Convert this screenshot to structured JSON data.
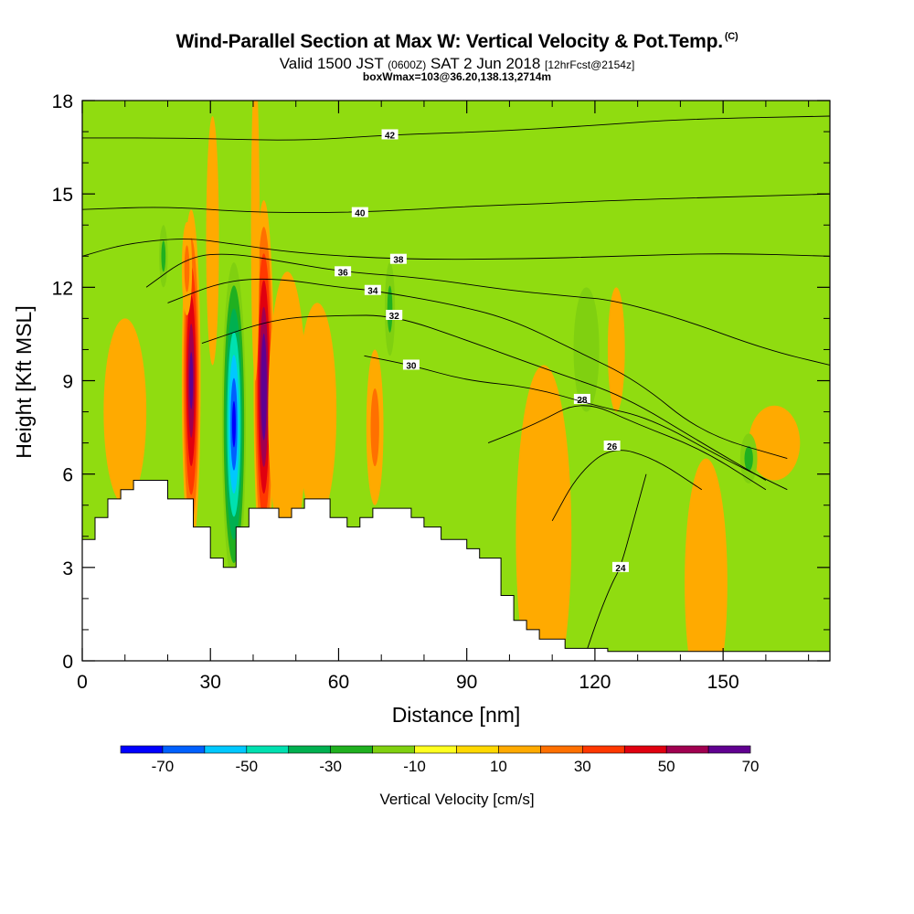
{
  "header": {
    "title": "Wind-Parallel Section at Max W: Vertical Velocity & Pot.Temp.",
    "title_mark": "(C)",
    "sub_part1": "Valid 1500 JST",
    "sub_part2": "(0600Z)",
    "sub_part3": "SAT 2 Jun 2018",
    "sub_part4": "[12hrFcst@2154z]",
    "sub2": "boxWmax=103@36.20,138.13,2714m"
  },
  "chart_data": {
    "type": "heatmap",
    "xlabel": "Distance [nm]",
    "ylabel": "Height [Kft MSL]",
    "xlim": [
      0,
      175
    ],
    "ylim": [
      0,
      18
    ],
    "x_ticks": [
      "0",
      "30",
      "60",
      "90",
      "120",
      "150"
    ],
    "y_ticks": [
      "0",
      "3",
      "6",
      "9",
      "12",
      "15",
      "18"
    ],
    "x_tick_values": [
      0,
      30,
      60,
      90,
      120,
      150
    ],
    "y_tick_values": [
      0,
      3,
      6,
      9,
      12,
      15,
      18
    ],
    "colorbar": {
      "label": "Vertical Velocity [cm/s]",
      "bounds": [
        -80,
        -70,
        -60,
        -50,
        -40,
        -30,
        -20,
        -10,
        0,
        10,
        20,
        30,
        40,
        50,
        60,
        70,
        80
      ],
      "colors": [
        "#0000ff",
        "#0060ff",
        "#00c8ff",
        "#00e0b0",
        "#00b050",
        "#20b020",
        "#80d010",
        "#ffff20",
        "#ffd800",
        "#ffaa00",
        "#ff7000",
        "#ff3800",
        "#e00010",
        "#a00050",
        "#600090"
      ],
      "tick_values": [
        -70,
        -50,
        -30,
        -10,
        10,
        30,
        50,
        70
      ],
      "tick_labels": [
        "-70",
        "-50",
        "-30",
        "-10",
        "10",
        "30",
        "50",
        "70"
      ]
    },
    "background_color": "#90dc10",
    "terrain": [
      [
        0,
        3.9
      ],
      [
        3,
        3.9
      ],
      [
        3,
        4.6
      ],
      [
        6,
        4.6
      ],
      [
        6,
        5.2
      ],
      [
        9,
        5.2
      ],
      [
        9,
        5.5
      ],
      [
        12,
        5.5
      ],
      [
        12,
        5.8
      ],
      [
        20,
        5.8
      ],
      [
        20,
        5.2
      ],
      [
        26,
        5.2
      ],
      [
        26,
        4.3
      ],
      [
        30,
        4.3
      ],
      [
        30,
        3.3
      ],
      [
        33,
        3.3
      ],
      [
        33,
        3.0
      ],
      [
        36,
        3.0
      ],
      [
        36,
        4.3
      ],
      [
        39,
        4.3
      ],
      [
        39,
        4.9
      ],
      [
        46,
        4.9
      ],
      [
        46,
        4.6
      ],
      [
        49,
        4.6
      ],
      [
        49,
        4.9
      ],
      [
        52,
        4.9
      ],
      [
        52,
        5.2
      ],
      [
        58,
        5.2
      ],
      [
        58,
        4.6
      ],
      [
        62,
        4.6
      ],
      [
        62,
        4.3
      ],
      [
        65,
        4.3
      ],
      [
        65,
        4.6
      ],
      [
        68,
        4.6
      ],
      [
        68,
        4.9
      ],
      [
        77,
        4.9
      ],
      [
        77,
        4.6
      ],
      [
        80,
        4.6
      ],
      [
        80,
        4.3
      ],
      [
        84,
        4.3
      ],
      [
        84,
        3.9
      ],
      [
        90,
        3.9
      ],
      [
        90,
        3.6
      ],
      [
        93,
        3.6
      ],
      [
        93,
        3.3
      ],
      [
        98,
        3.3
      ],
      [
        98,
        2.1
      ],
      [
        101,
        2.1
      ],
      [
        101,
        1.3
      ],
      [
        104,
        1.3
      ],
      [
        104,
        1.0
      ],
      [
        107,
        1.0
      ],
      [
        107,
        0.7
      ],
      [
        113,
        0.7
      ],
      [
        113,
        0.4
      ],
      [
        123,
        0.4
      ],
      [
        123,
        0.3
      ],
      [
        175,
        0.3
      ]
    ],
    "velocity_features": [
      {
        "x": 25.5,
        "y": 9.0,
        "rx": 2.2,
        "ry": 5.5,
        "w": 62
      },
      {
        "x": 24.5,
        "y": 12.6,
        "rx": 1.2,
        "ry": 1.5,
        "w": 22
      },
      {
        "x": 35.5,
        "y": 7.6,
        "rx": 2.8,
        "ry": 5.2,
        "w": -72
      },
      {
        "x": 42.5,
        "y": 8.8,
        "rx": 2.4,
        "ry": 6.0,
        "w": 75
      },
      {
        "x": 40.5,
        "y": 14.0,
        "rx": 1.0,
        "ry": 5.0,
        "w": 12
      },
      {
        "x": 48.0,
        "y": 8.0,
        "rx": 4.5,
        "ry": 4.5,
        "w": 15
      },
      {
        "x": 30.5,
        "y": 13.5,
        "rx": 1.5,
        "ry": 4.0,
        "w": 12
      },
      {
        "x": 19.0,
        "y": 13.0,
        "rx": 1.0,
        "ry": 1.0,
        "w": -20
      },
      {
        "x": 55.0,
        "y": 8.0,
        "rx": 4.5,
        "ry": 3.5,
        "w": 12
      },
      {
        "x": 68.5,
        "y": 7.5,
        "rx": 2.0,
        "ry": 2.5,
        "w": 25
      },
      {
        "x": 72.0,
        "y": 11.3,
        "rx": 1.2,
        "ry": 1.5,
        "w": -20
      },
      {
        "x": 106.5,
        "y": 4.0,
        "rx": 3.8,
        "ry": 3.5,
        "w": 38
      },
      {
        "x": 108.0,
        "y": 4.0,
        "rx": 6.5,
        "ry": 5.5,
        "w": 15
      },
      {
        "x": 145.0,
        "y": 3.0,
        "rx": 3.0,
        "ry": 2.5,
        "w": 28
      },
      {
        "x": 146.0,
        "y": 2.5,
        "rx": 5.0,
        "ry": 4.0,
        "w": 12
      },
      {
        "x": 118.0,
        "y": 10.0,
        "rx": 3.0,
        "ry": 2.0,
        "w": -18
      },
      {
        "x": 125.0,
        "y": 10.0,
        "rx": 2.0,
        "ry": 2.0,
        "w": 12
      },
      {
        "x": 162.0,
        "y": 7.0,
        "rx": 6.0,
        "ry": 1.2,
        "w": 12
      },
      {
        "x": 156.0,
        "y": 6.5,
        "rx": 2.0,
        "ry": 0.8,
        "w": -20
      },
      {
        "x": 10.0,
        "y": 8.0,
        "rx": 5.0,
        "ry": 3.0,
        "w": 12
      }
    ],
    "theta_contours": [
      {
        "label": "24",
        "label_x": 126,
        "points": [
          [
            118,
            0.3
          ],
          [
            121,
            1.5
          ],
          [
            124,
            2.5
          ],
          [
            126,
            3.0
          ],
          [
            129,
            4.5
          ],
          [
            132,
            6.0
          ]
        ]
      },
      {
        "label": "26",
        "label_x": 124,
        "points": [
          [
            110,
            4.5
          ],
          [
            116,
            6.0
          ],
          [
            124,
            6.9
          ],
          [
            134,
            6.5
          ],
          [
            145,
            5.5
          ]
        ]
      },
      {
        "label": "28",
        "label_x": 117,
        "points": [
          [
            95,
            7.0
          ],
          [
            106,
            7.6
          ],
          [
            117,
            8.4
          ],
          [
            130,
            7.6
          ],
          [
            145,
            6.8
          ],
          [
            160,
            5.5
          ]
        ]
      },
      {
        "label": "30",
        "label_x": 77,
        "points": [
          [
            66,
            9.8
          ],
          [
            77,
            9.5
          ],
          [
            90,
            9.0
          ],
          [
            105,
            8.8
          ],
          [
            120,
            8.2
          ],
          [
            133,
            7.8
          ],
          [
            150,
            6.5
          ],
          [
            165,
            5.5
          ]
        ]
      },
      {
        "label": "32",
        "label_x": 73,
        "points": [
          [
            28,
            10.2
          ],
          [
            45,
            11.0
          ],
          [
            60,
            11.1
          ],
          [
            73,
            11.1
          ],
          [
            90,
            10.3
          ],
          [
            110,
            9.3
          ],
          [
            127,
            8.5
          ],
          [
            145,
            7.0
          ],
          [
            160,
            5.8
          ]
        ]
      },
      {
        "label": "34",
        "label_x": 68,
        "points": [
          [
            20,
            11.5
          ],
          [
            33,
            12.2
          ],
          [
            45,
            12.3
          ],
          [
            60,
            12.0
          ],
          [
            68,
            11.9
          ],
          [
            85,
            11.5
          ],
          [
            100,
            11.0
          ],
          [
            115,
            10.0
          ],
          [
            130,
            9.0
          ],
          [
            145,
            7.3
          ],
          [
            165,
            6.5
          ]
        ]
      },
      {
        "label": "36",
        "label_x": 61,
        "points": [
          [
            15,
            12.0
          ],
          [
            25,
            13.0
          ],
          [
            35,
            13.1
          ],
          [
            48,
            12.8
          ],
          [
            61,
            12.5
          ],
          [
            80,
            12.3
          ],
          [
            100,
            11.9
          ],
          [
            115,
            11.7
          ],
          [
            124,
            11.6
          ],
          [
            140,
            11.0
          ],
          [
            160,
            10.0
          ],
          [
            175,
            9.5
          ]
        ]
      },
      {
        "label": "38",
        "label_x": 74,
        "points": [
          [
            0,
            13.0
          ],
          [
            10,
            13.4
          ],
          [
            24,
            13.6
          ],
          [
            35,
            13.4
          ],
          [
            50,
            13.1
          ],
          [
            74,
            12.9
          ],
          [
            100,
            12.9
          ],
          [
            126,
            13.0
          ],
          [
            150,
            13.1
          ],
          [
            175,
            13.0
          ]
        ]
      },
      {
        "label": "40",
        "label_x": 65,
        "points": [
          [
            0,
            14.5
          ],
          [
            20,
            14.6
          ],
          [
            40,
            14.4
          ],
          [
            65,
            14.4
          ],
          [
            90,
            14.6
          ],
          [
            110,
            14.7
          ],
          [
            126,
            14.8
          ],
          [
            150,
            14.9
          ],
          [
            175,
            15.0
          ]
        ]
      },
      {
        "label": "42",
        "label_x": 72,
        "points": [
          [
            0,
            16.8
          ],
          [
            25,
            16.8
          ],
          [
            50,
            16.7
          ],
          [
            72,
            16.9
          ],
          [
            95,
            17.0
          ],
          [
            120,
            17.2
          ],
          [
            140,
            17.4
          ],
          [
            175,
            17.5
          ]
        ]
      }
    ]
  }
}
